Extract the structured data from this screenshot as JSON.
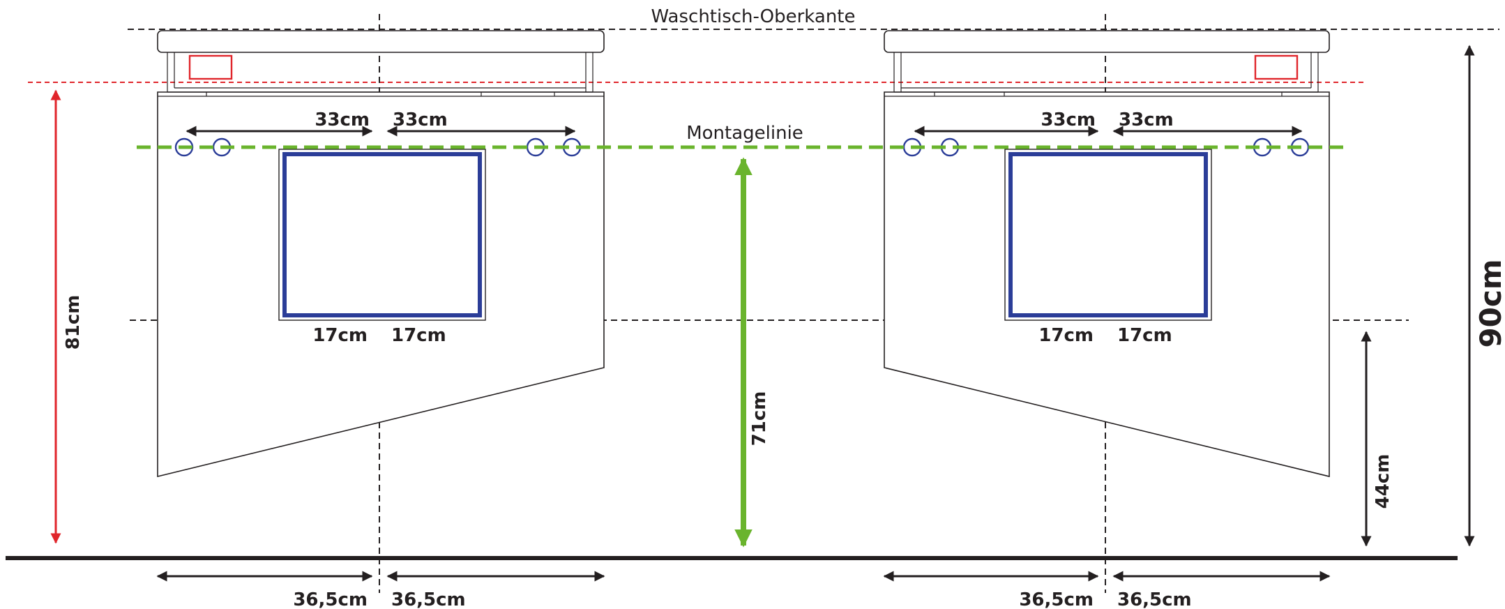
{
  "diagram": {
    "top_edge_label": "Waschtisch-Oberkante",
    "mounting_line_label": "Montagelinie",
    "height_total": "90cm",
    "height_red": "81cm",
    "height_green": "71cm",
    "height_right_small": "44cm",
    "left_unit": {
      "hole_left": "33cm",
      "hole_right": "33cm",
      "drawer_left": "17cm",
      "drawer_right": "17cm",
      "width_left": "36,5cm",
      "width_right": "36,5cm"
    },
    "right_unit": {
      "hole_left": "33cm",
      "hole_right": "33cm",
      "drawer_left": "17cm",
      "drawer_right": "17cm",
      "width_left": "36,5cm",
      "width_right": "36,5cm"
    },
    "colors": {
      "line": "#231f20",
      "red": "#e0252b",
      "green": "#6ab42d",
      "blue": "#2b3d98"
    }
  }
}
